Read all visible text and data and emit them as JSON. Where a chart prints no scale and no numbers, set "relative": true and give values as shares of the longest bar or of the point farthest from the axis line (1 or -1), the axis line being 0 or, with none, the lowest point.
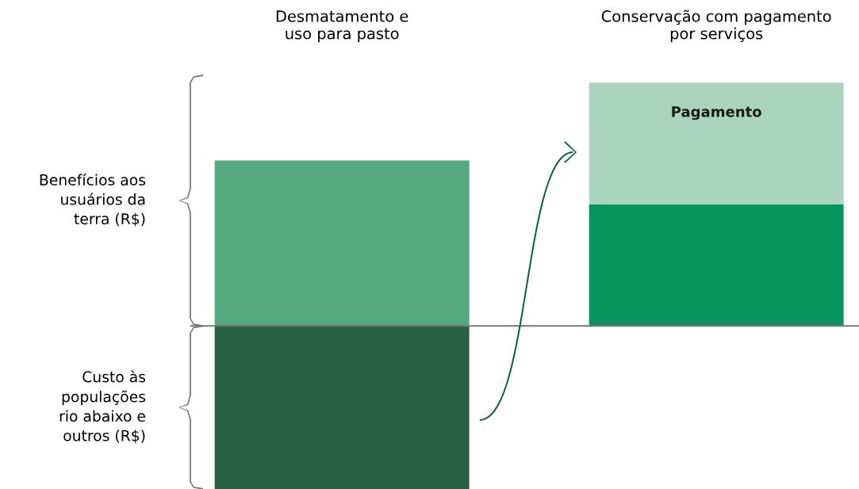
{
  "chart_data": {
    "type": "bar",
    "stacked": true,
    "relative": true,
    "legend": false,
    "categories": [
      "Desmatamento e\nuso para pasto",
      "Conservação com pagamento\npor serviços"
    ],
    "series": [
      {
        "colors": [
          "#54aa7e",
          "#07945e"
        ],
        "values": [
          0.68,
          0.5
        ]
      },
      {
        "name": "Pagamento",
        "color": "#aad4bd",
        "values": [
          null,
          0.5
        ]
      },
      {
        "color": "#276141",
        "values": [
          -0.67,
          null
        ]
      }
    ],
    "annotations": [
      "Benefícios aos\nusuários da\nterra (R$)",
      "Custo às\npopulações\nrio abaixo e\noutros (R$)"
    ]
  }
}
